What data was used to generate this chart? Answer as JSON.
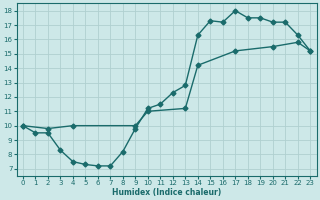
{
  "xlabel": "Humidex (Indice chaleur)",
  "xlim": [
    -0.5,
    23.5
  ],
  "ylim": [
    6.5,
    18.5
  ],
  "xticks": [
    0,
    1,
    2,
    3,
    4,
    5,
    6,
    7,
    8,
    9,
    10,
    11,
    12,
    13,
    14,
    15,
    16,
    17,
    18,
    19,
    20,
    21,
    22,
    23
  ],
  "yticks": [
    7,
    8,
    9,
    10,
    11,
    12,
    13,
    14,
    15,
    16,
    17,
    18
  ],
  "background_color": "#cde8e8",
  "grid_color": "#b0d0d0",
  "line_color": "#1a6b6b",
  "curve1_x": [
    0,
    1,
    2,
    3,
    4,
    5,
    6,
    7,
    8,
    9,
    10,
    11,
    12,
    13,
    14,
    15,
    16,
    17,
    18,
    19,
    20,
    21,
    22,
    23
  ],
  "curve1_y": [
    10.0,
    9.5,
    9.5,
    8.3,
    7.5,
    7.3,
    7.2,
    7.2,
    8.2,
    9.8,
    11.2,
    11.5,
    12.3,
    12.8,
    16.3,
    17.3,
    17.2,
    18.0,
    17.5,
    17.5,
    17.2,
    17.2,
    16.3,
    15.2
  ],
  "curve2_x": [
    0,
    2,
    4,
    9,
    10,
    13,
    14,
    17,
    20,
    22,
    23
  ],
  "curve2_y": [
    10.0,
    9.8,
    10.0,
    10.0,
    11.0,
    11.2,
    14.2,
    15.2,
    15.5,
    15.8,
    15.2
  ],
  "marker": "D",
  "markersize": 2.5,
  "linewidth": 1.0
}
